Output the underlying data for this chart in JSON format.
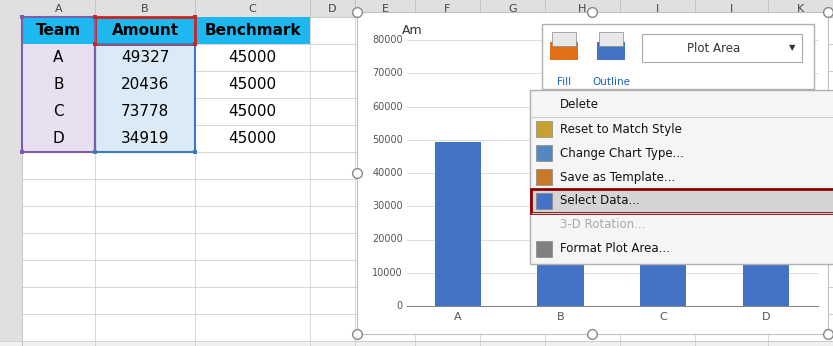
{
  "spreadsheet": {
    "header_bg": "#1db8f0",
    "table_data": [
      [
        "Team",
        "Amount",
        "Benchmark"
      ],
      [
        "A",
        "49327",
        "45000"
      ],
      [
        "B",
        "20436",
        "45000"
      ],
      [
        "C",
        "73778",
        "45000"
      ],
      [
        "D",
        "34919",
        "45000"
      ]
    ],
    "amounts": [
      49327,
      20436,
      73778,
      34919
    ]
  },
  "chart": {
    "title": "Am",
    "bar_color": "#4472c4",
    "ylim": [
      0,
      80000
    ],
    "yticks": [
      0,
      10000,
      20000,
      30000,
      40000,
      50000,
      60000,
      70000,
      80000
    ]
  },
  "context_menu": {
    "items": [
      "Delete",
      "Reset to Match Style",
      "Change Chart Type...",
      "Save as Template...",
      "Select Data...",
      "3-D Rotation...",
      "Format Plot Area..."
    ],
    "selected_idx": 4,
    "disabled_items": [
      5
    ]
  },
  "excel_bg": "#f0f0f0",
  "col_header_bg": "#e0e0e0",
  "grid_line_color": "#c8c8c8",
  "selection_purple": "#7b5ea7",
  "selection_blue_bg": "#daeaf7",
  "col_a_bg": "#e8e0f0"
}
